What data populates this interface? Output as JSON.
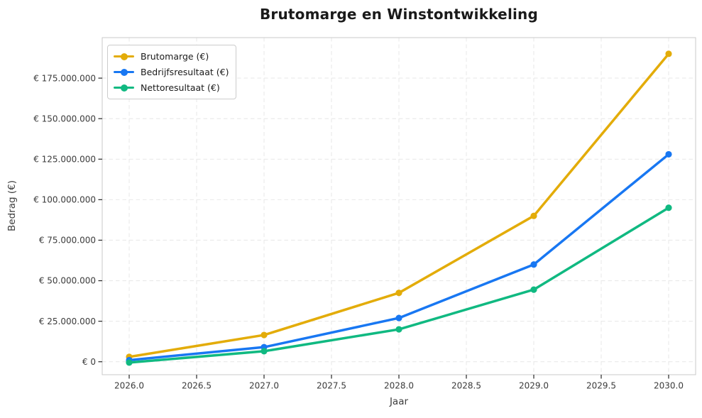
{
  "title": "Brutomarge en Winstontwikkeling",
  "chart_data": {
    "type": "line",
    "title": "Brutomarge en Winstontwikkeling",
    "xlabel": "Jaar",
    "ylabel": "Bedrag (€)",
    "x": [
      2026,
      2027,
      2028,
      2029,
      2030
    ],
    "series": [
      {
        "name": "Brutomarge (€)",
        "color": "#E3AC09",
        "values": [
          3000000,
          16500000,
          42500000,
          90000000,
          190000000
        ]
      },
      {
        "name": "Bedrijfsresultaat (€)",
        "color": "#1877F2",
        "values": [
          1000000,
          9000000,
          27000000,
          60000000,
          128000000
        ]
      },
      {
        "name": "Nettoresultaat (€)",
        "color": "#10B981",
        "values": [
          -500000,
          6500000,
          20000000,
          44500000,
          95000000
        ]
      }
    ],
    "xlim": [
      2025.8,
      2030.2
    ],
    "ylim": [
      -8000000,
      200000000
    ],
    "x_ticks": [
      {
        "value": 2026.0,
        "label": "2026.0"
      },
      {
        "value": 2026.5,
        "label": "2026.5"
      },
      {
        "value": 2027.0,
        "label": "2027.0"
      },
      {
        "value": 2027.5,
        "label": "2027.5"
      },
      {
        "value": 2028.0,
        "label": "2028.0"
      },
      {
        "value": 2028.5,
        "label": "2028.5"
      },
      {
        "value": 2029.0,
        "label": "2029.0"
      },
      {
        "value": 2029.5,
        "label": "2029.5"
      },
      {
        "value": 2030.0,
        "label": "2030.0"
      }
    ],
    "y_ticks": [
      {
        "value": 0,
        "label": "€ 0"
      },
      {
        "value": 25000000,
        "label": "€ 25.000.000"
      },
      {
        "value": 50000000,
        "label": "€ 50.000.000"
      },
      {
        "value": 75000000,
        "label": "€ 75.000.000"
      },
      {
        "value": 100000000,
        "label": "€ 100.000.000"
      },
      {
        "value": 125000000,
        "label": "€ 125.000.000"
      },
      {
        "value": 150000000,
        "label": "€ 150.000.000"
      },
      {
        "value": 175000000,
        "label": "€ 175.000.000"
      }
    ],
    "grid": true,
    "legend_position": "upper-left"
  },
  "colors": {
    "background": "#FFFFFF",
    "grid": "#E9E9E9",
    "spine": "#C9C9C9",
    "tick_mark": "#262626",
    "tick_label": "#3B3B3B",
    "title_text": "#1A1A1A",
    "legend_border": "#CCCCCC"
  }
}
